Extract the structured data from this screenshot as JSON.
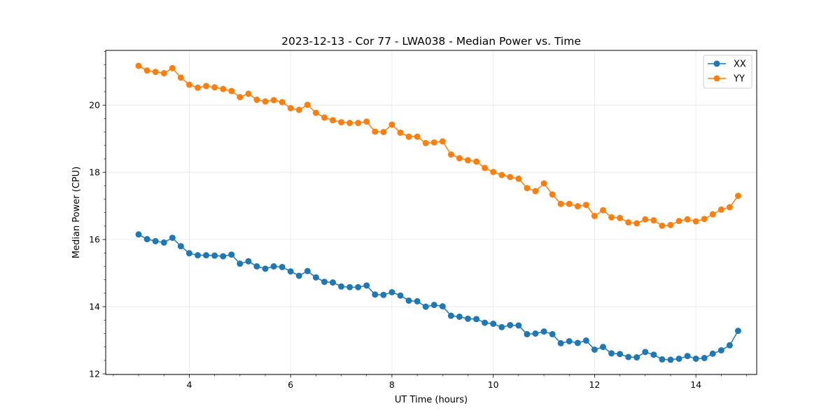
{
  "chart_data": {
    "type": "line",
    "title": "2023-12-13 - Cor 77 - LWA038 - Median Power vs. Time",
    "xlabel": "UT Time (hours)",
    "ylabel": "Median Power (CPU)",
    "xlim": [
      2.35,
      15.2
    ],
    "ylim": [
      11.98,
      21.63
    ],
    "xticks": [
      4,
      6,
      8,
      10,
      12,
      14
    ],
    "xtick_labels": [
      "4",
      "6",
      "8",
      "10",
      "12",
      "14"
    ],
    "yticks": [
      12,
      14,
      16,
      18,
      20
    ],
    "ytick_labels": [
      "12",
      "14",
      "16",
      "18",
      "20"
    ],
    "grid": true,
    "legend_position": "top-right",
    "x": [
      3.0,
      3.167,
      3.333,
      3.5,
      3.667,
      3.833,
      4.0,
      4.167,
      4.333,
      4.5,
      4.667,
      4.833,
      5.0,
      5.167,
      5.333,
      5.5,
      5.667,
      5.833,
      6.0,
      6.167,
      6.333,
      6.5,
      6.667,
      6.833,
      7.0,
      7.167,
      7.333,
      7.5,
      7.667,
      7.833,
      8.0,
      8.167,
      8.333,
      8.5,
      8.667,
      8.833,
      9.0,
      9.167,
      9.333,
      9.5,
      9.667,
      9.833,
      10.0,
      10.167,
      10.333,
      10.5,
      10.667,
      10.833,
      11.0,
      11.167,
      11.333,
      11.5,
      11.667,
      11.833,
      12.0,
      12.167,
      12.333,
      12.5,
      12.667,
      12.833,
      13.0,
      13.167,
      13.333,
      13.5,
      13.667,
      13.833,
      14.0,
      14.167,
      14.333,
      14.5,
      14.667,
      14.833
    ],
    "series": [
      {
        "name": "XX",
        "color": "#1f77b4",
        "values": [
          16.15,
          16.01,
          15.95,
          15.91,
          16.05,
          15.8,
          15.59,
          15.53,
          15.53,
          15.52,
          15.5,
          15.55,
          15.28,
          15.35,
          15.2,
          15.13,
          15.2,
          15.18,
          15.05,
          14.92,
          15.06,
          14.87,
          14.74,
          14.72,
          14.6,
          14.58,
          14.58,
          14.63,
          14.36,
          14.35,
          14.43,
          14.33,
          14.18,
          14.16,
          14.0,
          14.05,
          14.01,
          13.73,
          13.7,
          13.64,
          13.63,
          13.52,
          13.49,
          13.39,
          13.45,
          13.44,
          13.18,
          13.2,
          13.26,
          13.18,
          12.91,
          12.97,
          12.92,
          12.99,
          12.72,
          12.8,
          12.61,
          12.59,
          12.5,
          12.49,
          12.65,
          12.57,
          12.43,
          12.42,
          12.45,
          12.53,
          12.45,
          12.47,
          12.6,
          12.7,
          12.85,
          13.28
        ]
      },
      {
        "name": "YY",
        "color": "#ff7f0e",
        "values": [
          21.17,
          21.03,
          20.99,
          20.95,
          21.1,
          20.82,
          20.61,
          20.52,
          20.57,
          20.53,
          20.48,
          20.42,
          20.24,
          20.34,
          20.16,
          20.11,
          20.15,
          20.09,
          19.91,
          19.86,
          20.01,
          19.77,
          19.63,
          19.55,
          19.49,
          19.47,
          19.47,
          19.51,
          19.21,
          19.2,
          19.42,
          19.18,
          19.06,
          19.06,
          18.87,
          18.89,
          18.92,
          18.53,
          18.42,
          18.36,
          18.32,
          18.13,
          18.01,
          17.92,
          17.86,
          17.81,
          17.53,
          17.44,
          17.67,
          17.34,
          17.06,
          17.06,
          16.99,
          17.03,
          16.7,
          16.87,
          16.66,
          16.64,
          16.51,
          16.48,
          16.6,
          16.57,
          16.41,
          16.43,
          16.55,
          16.6,
          16.54,
          16.61,
          16.75,
          16.89,
          16.96,
          17.3
        ]
      }
    ]
  }
}
